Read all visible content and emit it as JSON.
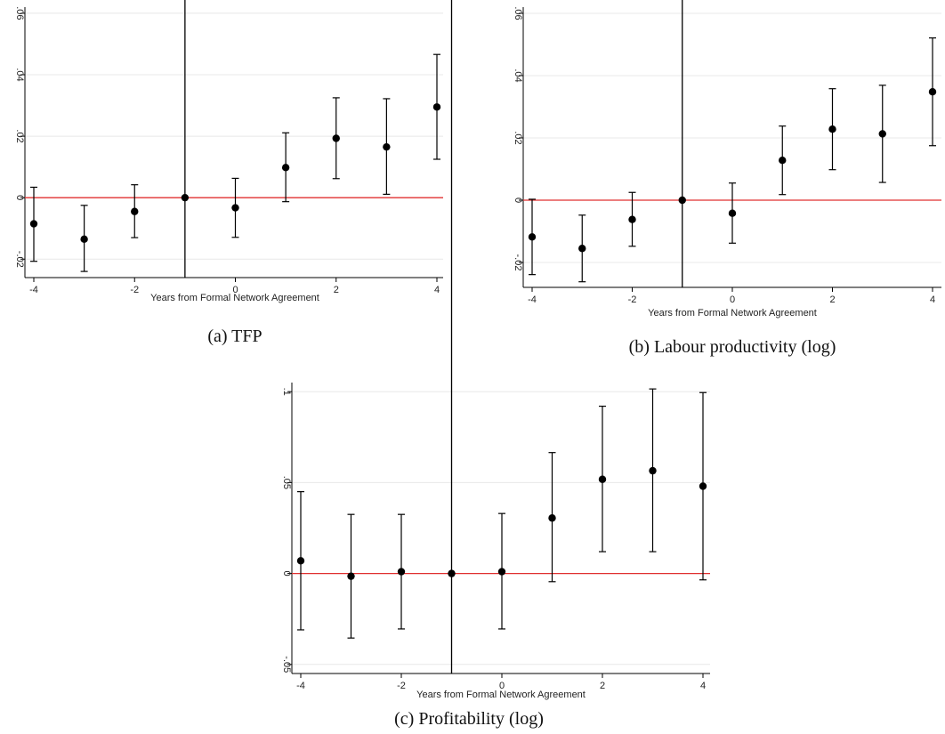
{
  "figure": {
    "colors": {
      "zero_line": "#e03030",
      "event_line": "#000000",
      "grid": "#e8e8e8",
      "points": "#000000",
      "axis": "#000000"
    }
  },
  "chart_data": [
    {
      "type": "scatter",
      "caption": "(a) TFP",
      "xlabel": "Years from Formal Network Agreement",
      "ylabel": "",
      "xlim": [
        -4,
        4
      ],
      "ylim": [
        -0.026,
        0.062
      ],
      "x_ticks": [
        -4,
        -2,
        0,
        2,
        4
      ],
      "x_tick_labels": [
        "-4",
        "-2",
        "0",
        "2",
        "4"
      ],
      "y_ticks": [
        -0.02,
        0,
        0.02,
        0.04,
        0.06
      ],
      "y_tick_labels": [
        "-.02",
        "0",
        ".02",
        ".04",
        ".06"
      ],
      "event_line_x": -1,
      "zero_line_y": 0,
      "grid": true,
      "series": [
        {
          "x": [
            -4,
            -3,
            -2,
            -1,
            0,
            1,
            2,
            3,
            4
          ],
          "y": [
            -0.0085,
            -0.0135,
            -0.0045,
            0.0,
            -0.0033,
            0.0098,
            0.0193,
            0.0165,
            0.0295
          ],
          "ci_low": [
            -0.0207,
            -0.024,
            -0.013,
            0.0,
            -0.0129,
            -0.0013,
            0.0062,
            0.0011,
            0.0125
          ],
          "ci_high": [
            0.0034,
            -0.0025,
            0.0042,
            0.0,
            0.0063,
            0.0211,
            0.0325,
            0.0322,
            0.0466
          ]
        }
      ]
    },
    {
      "type": "scatter",
      "caption": "(b) Labour productivity (log)",
      "xlabel": "Years from Formal Network Agreement",
      "ylabel": "",
      "xlim": [
        -4,
        4
      ],
      "ylim": [
        -0.028,
        0.062
      ],
      "x_ticks": [
        -4,
        -2,
        0,
        2,
        4
      ],
      "x_tick_labels": [
        "-4",
        "-2",
        "0",
        "2",
        "4"
      ],
      "y_ticks": [
        -0.02,
        0,
        0.02,
        0.04,
        0.06
      ],
      "y_tick_labels": [
        "-.02",
        "0",
        ".02",
        ".04",
        ".06"
      ],
      "event_line_x": -1,
      "zero_line_y": 0,
      "grid": true,
      "series": [
        {
          "x": [
            -4,
            -3,
            -2,
            -1,
            0,
            1,
            2,
            3,
            4
          ],
          "y": [
            -0.0118,
            -0.0155,
            -0.0062,
            0.0,
            -0.0042,
            0.0128,
            0.0228,
            0.0213,
            0.0348
          ],
          "ci_low": [
            -0.0239,
            -0.0262,
            -0.0148,
            0.0,
            -0.0138,
            0.0018,
            0.0098,
            0.0057,
            0.0175
          ],
          "ci_high": [
            0.0003,
            -0.0048,
            0.0025,
            0.0,
            0.0055,
            0.0238,
            0.0358,
            0.0369,
            0.0521
          ]
        }
      ]
    },
    {
      "type": "scatter",
      "caption": "(c) Profitability (log)",
      "xlabel": "Years from Formal Network Agreement",
      "ylabel": "",
      "xlim": [
        -4,
        4
      ],
      "ylim": [
        -0.055,
        0.105
      ],
      "x_ticks": [
        -4,
        -2,
        0,
        2,
        4
      ],
      "x_tick_labels": [
        "-4",
        "-2",
        "0",
        "2",
        "4"
      ],
      "y_ticks": [
        -0.05,
        0,
        0.05,
        0.1
      ],
      "y_tick_labels": [
        "-.05",
        "0",
        ".05",
        ".1"
      ],
      "event_line_x": -1,
      "zero_line_y": 0,
      "grid": true,
      "series": [
        {
          "x": [
            -4,
            -3,
            -2,
            -1,
            0,
            1,
            2,
            3,
            4
          ],
          "y": [
            0.007,
            -0.0015,
            0.001,
            0.0,
            0.001,
            0.0305,
            0.0518,
            0.0565,
            0.048
          ],
          "ci_low": [
            -0.031,
            -0.0355,
            -0.0305,
            0.0,
            -0.0305,
            -0.0045,
            0.012,
            0.012,
            -0.0035
          ],
          "ci_high": [
            0.045,
            0.0325,
            0.0325,
            0.0,
            0.033,
            0.0665,
            0.092,
            0.1015,
            0.0995
          ]
        }
      ]
    }
  ]
}
